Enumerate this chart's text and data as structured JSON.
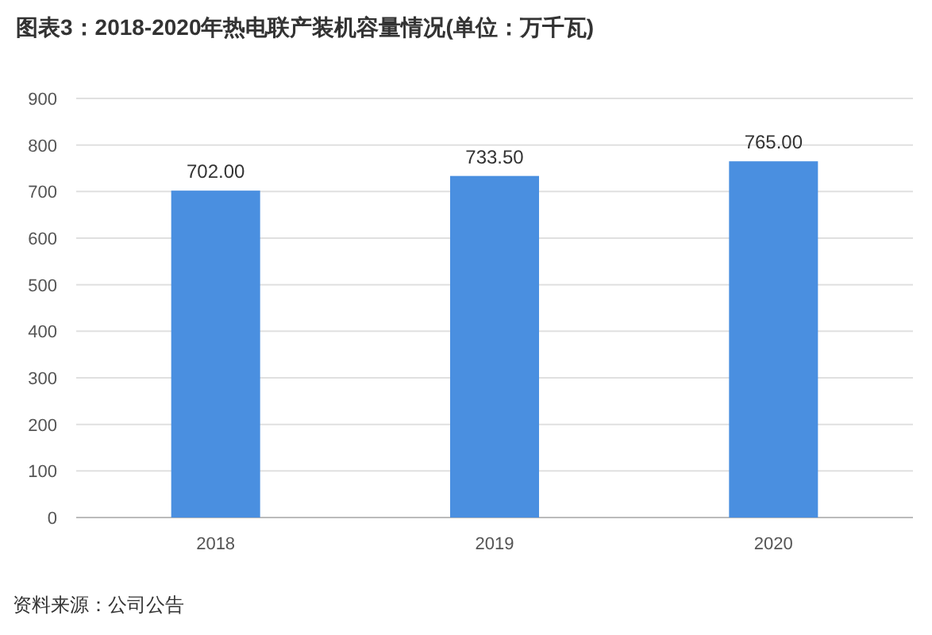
{
  "chart_data": {
    "type": "bar",
    "title": "图表3：2018-2020年热电联产装机容量情况(单位：万千瓦)",
    "categories": [
      "2018",
      "2019",
      "2020"
    ],
    "values": [
      702,
      733.5,
      765
    ],
    "value_labels": [
      "702.00",
      "733.50",
      "765.00"
    ],
    "color": "#4a8fe0",
    "ylim": [
      0,
      900
    ],
    "yticks": [
      0,
      100,
      200,
      300,
      400,
      500,
      600,
      700,
      800,
      900
    ],
    "grid": "y",
    "annotations": [
      "资料来源：公司公告"
    ]
  }
}
